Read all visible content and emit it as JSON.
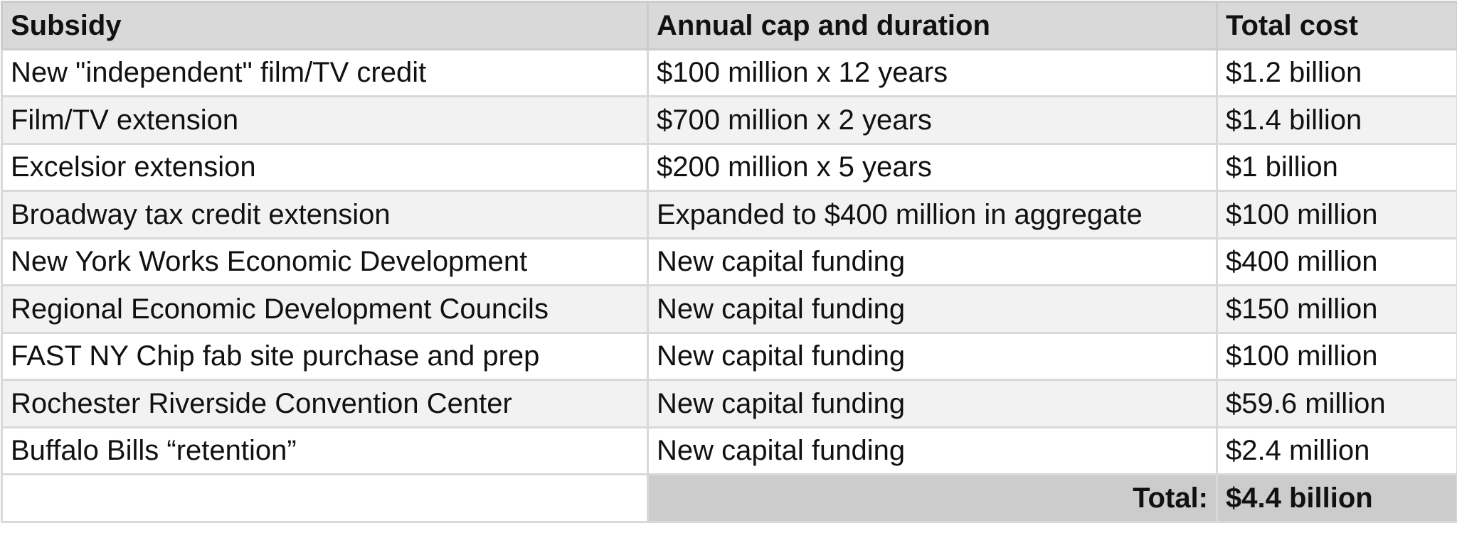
{
  "table": {
    "headers": [
      "Subsidy",
      "Annual cap and duration",
      "Total cost"
    ],
    "rows": [
      {
        "subsidy": "New \"independent\" film/TV credit",
        "cap": "$100 million x 12 years",
        "cost": "$1.2 billion"
      },
      {
        "subsidy": "Film/TV extension",
        "cap": "$700 million x 2 years",
        "cost": "$1.4 billion"
      },
      {
        "subsidy": "Excelsior extension",
        "cap": "$200 million x 5 years",
        "cost": "$1 billion"
      },
      {
        "subsidy": "Broadway tax credit extension",
        "cap": "Expanded to $400 million in aggregate",
        "cost": "$100 million"
      },
      {
        "subsidy": "New York Works Economic Development",
        "cap": "New capital funding",
        "cost": "$400 million"
      },
      {
        "subsidy": "Regional Economic Development Councils",
        "cap": "New capital funding",
        "cost": "$150 million"
      },
      {
        "subsidy": "FAST NY Chip fab site purchase and prep",
        "cap": "New capital funding",
        "cost": "$100 million"
      },
      {
        "subsidy": "Rochester Riverside Convention Center",
        "cap": "New capital funding",
        "cost": "$59.6 million"
      },
      {
        "subsidy": "Buffalo Bills “retention”",
        "cap": "New capital funding",
        "cost": "$2.4 million"
      }
    ],
    "total_label": "Total:",
    "total_value": "$4.4 billion"
  },
  "colors": {
    "header_background": "#d9d9d9",
    "total_background": "#cccccc",
    "alt_row_background": "#f2f2f2",
    "grid_line": "#d9d9d9"
  }
}
